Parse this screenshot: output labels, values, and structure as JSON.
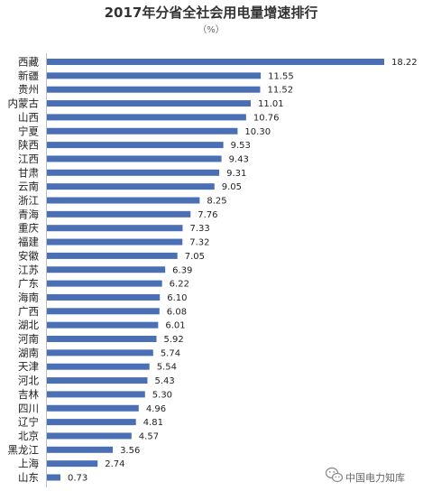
{
  "chart_data": {
    "type": "bar",
    "orientation": "horizontal",
    "title": "2017年分省全社会用电量增速排行",
    "subtitle": "（%）",
    "categories": [
      "西藏",
      "新疆",
      "贵州",
      "内蒙古",
      "山西",
      "宁夏",
      "陕西",
      "江西",
      "甘肃",
      "云南",
      "浙江",
      "青海",
      "重庆",
      "福建",
      "安徽",
      "江苏",
      "广东",
      "海南",
      "广西",
      "湖北",
      "河南",
      "湖南",
      "天津",
      "河北",
      "吉林",
      "四川",
      "辽宁",
      "北京",
      "黑龙江",
      "上海",
      "山东"
    ],
    "values": [
      18.22,
      11.55,
      11.52,
      11.01,
      10.76,
      10.3,
      9.53,
      9.43,
      9.31,
      9.05,
      8.25,
      7.76,
      7.33,
      7.32,
      7.05,
      6.39,
      6.22,
      6.1,
      6.08,
      6.01,
      5.92,
      5.74,
      5.54,
      5.43,
      5.3,
      4.96,
      4.81,
      4.57,
      3.56,
      2.74,
      0.73
    ],
    "value_labels": [
      "18.22",
      "11.55",
      "11.52",
      "11.01",
      "10.76",
      "10.30",
      "9.53",
      "9.43",
      "9.31",
      "9.05",
      "8.25",
      "7.76",
      "7.33",
      "7.32",
      "7.05",
      "6.39",
      "6.22",
      "6.10",
      "6.08",
      "6.01",
      "5.92",
      "5.74",
      "5.54",
      "5.43",
      "5.30",
      "4.96",
      "4.81",
      "4.57",
      "3.56",
      "2.74",
      "0.73"
    ],
    "xlim": [
      0,
      18.22
    ],
    "grid": false,
    "colors": {
      "bar": "#4a6fb5",
      "axis": "#bfbfbf"
    }
  },
  "watermark": {
    "text": "中国电力知库",
    "icon": "wechat-icon"
  }
}
